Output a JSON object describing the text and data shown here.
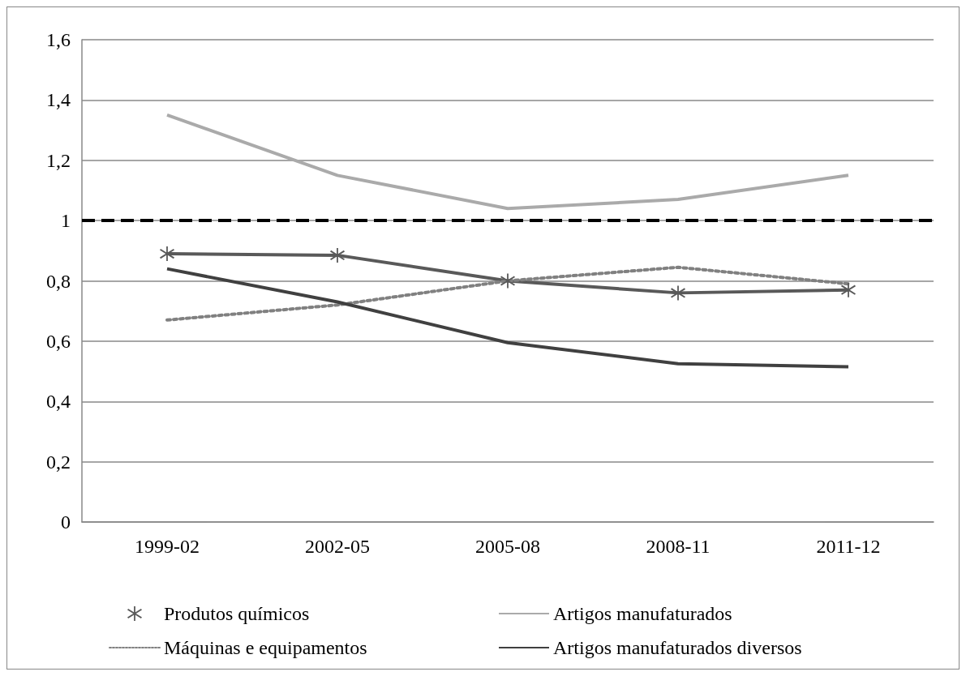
{
  "chart_data": {
    "type": "line",
    "categories": [
      "1999-02",
      "2002-05",
      "2005-08",
      "2008-11",
      "2011-12"
    ],
    "series": [
      {
        "name": "Produtos químicos",
        "color": "#595959",
        "marker": "cross",
        "line_style": "solid",
        "values": [
          0.89,
          0.885,
          0.8,
          0.76,
          0.77
        ]
      },
      {
        "name": "Artigos manufaturados",
        "color": "#aaaaaa",
        "line_style": "solid",
        "values": [
          1.35,
          1.15,
          1.04,
          1.07,
          1.15
        ]
      },
      {
        "name": "Máquinas e equipamentos",
        "color": "#808080",
        "line_style": "dotted",
        "values": [
          0.67,
          0.72,
          0.8,
          0.845,
          0.79
        ]
      },
      {
        "name": "Artigos manufaturados diversos",
        "color": "#404040",
        "line_style": "solid",
        "values": [
          0.84,
          0.73,
          0.595,
          0.525,
          0.515
        ]
      }
    ],
    "ylim": [
      0,
      1.6
    ],
    "yticks": [
      0,
      {
        "value": 0.2,
        "label": "0,2"
      },
      {
        "value": 0.4,
        "label": "0,4"
      },
      {
        "value": 0.6,
        "label": "0,6"
      },
      {
        "value": 0.8,
        "label": "0,8"
      },
      1,
      {
        "value": 1.2,
        "label": "1,2"
      },
      {
        "value": 1.4,
        "label": "1,4"
      },
      {
        "value": 1.6,
        "label": "1,6"
      }
    ],
    "ref_lines": [
      {
        "axis": "y",
        "value": 1,
        "color": "#000000",
        "line_style": "dashed"
      }
    ],
    "grid": "y",
    "legend": "bottom"
  }
}
